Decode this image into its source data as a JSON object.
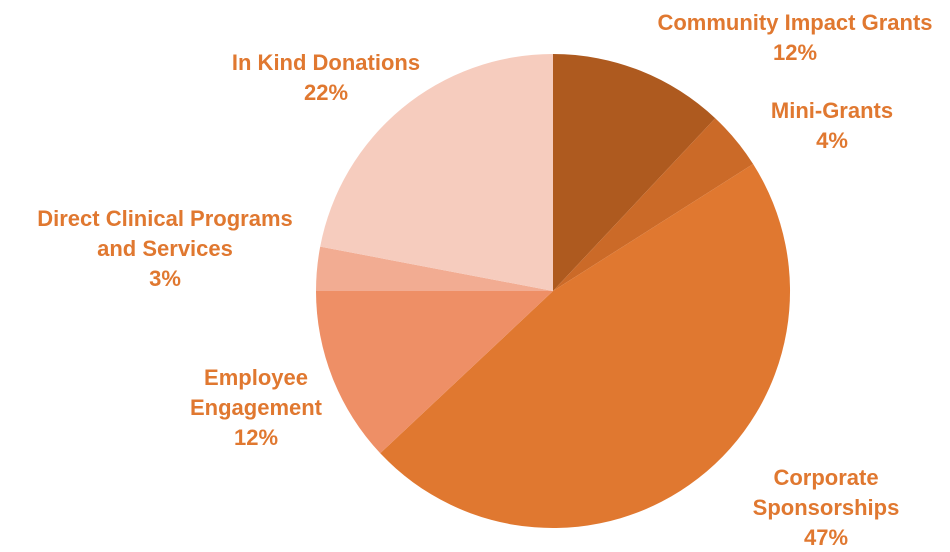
{
  "chart_data": {
    "type": "pie",
    "title": "",
    "start_angle_deg": 0,
    "direction": "clockwise",
    "slices": [
      {
        "label_lines": [
          "Community Impact Grants"
        ],
        "value": 12,
        "value_label": "12%",
        "color": "#AE5A1F"
      },
      {
        "label_lines": [
          "Mini-Grants"
        ],
        "value": 4,
        "value_label": "4%",
        "color": "#CB6A28"
      },
      {
        "label_lines": [
          "Corporate",
          "Sponsorships"
        ],
        "value": 47,
        "value_label": "47%",
        "color": "#E07830"
      },
      {
        "label_lines": [
          "Employee",
          "Engagement"
        ],
        "value": 12,
        "value_label": "12%",
        "color": "#EE8F66"
      },
      {
        "label_lines": [
          "Direct Clinical Programs",
          "and Services"
        ],
        "value": 3,
        "value_label": "3%",
        "color": "#F2AC92"
      },
      {
        "label_lines": [
          "In Kind Donations"
        ],
        "value": 22,
        "value_label": "22%",
        "color": "#F6CCBE"
      }
    ],
    "label_color": "#E07830",
    "legend": "none"
  }
}
